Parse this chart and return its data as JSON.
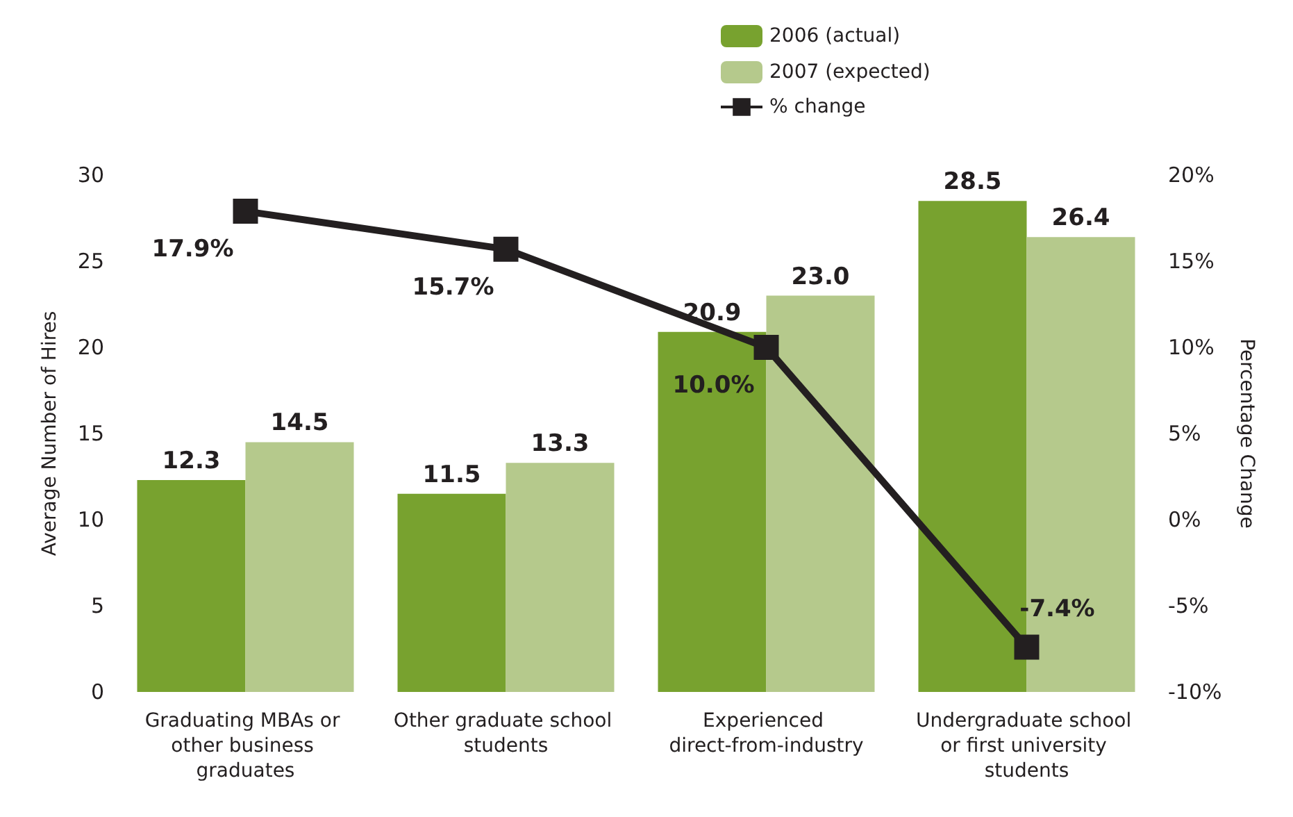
{
  "chart_data": {
    "type": "bar",
    "categories": [
      "Graduating MBAs or other business graduates",
      "Other graduate school students",
      "Experienced direct-from-industry",
      "Undergraduate school or first university students"
    ],
    "series": [
      {
        "name": "2006 (actual)",
        "color": "#78a22f",
        "values": [
          12.3,
          11.5,
          20.9,
          28.5
        ]
      },
      {
        "name": "2007 (expected)",
        "color": "#b5c98c",
        "values": [
          14.5,
          13.3,
          23.0,
          26.4
        ],
        "value_labels": [
          "14.5",
          "13.3",
          "23.0",
          "26.4"
        ]
      },
      {
        "name": "% change",
        "type": "line",
        "axis": "y2",
        "color": "#231f20",
        "values": [
          17.9,
          15.7,
          10.0,
          -7.4
        ],
        "value_labels": [
          "17.9%",
          "15.7%",
          "10.0%",
          "-7.4%"
        ]
      }
    ],
    "ylabel": "Average Number of Hires",
    "y2label": "Percentage Change",
    "ylim": [
      0,
      30
    ],
    "yticks": [
      0,
      5,
      10,
      15,
      20,
      25,
      30
    ],
    "y2lim": [
      -10,
      20
    ],
    "y2ticks": [
      {
        "value": -10,
        "label": "-10%"
      },
      {
        "value": -5,
        "label": "-5%"
      },
      {
        "value": 0,
        "label": "0%"
      },
      {
        "value": 5,
        "label": "5%"
      },
      {
        "value": 10,
        "label": "10%"
      },
      {
        "value": 15,
        "label": "15%"
      },
      {
        "value": 20,
        "label": "20%"
      }
    ],
    "data_labels": true,
    "legend": "top",
    "marker": "square",
    "grid": false
  }
}
